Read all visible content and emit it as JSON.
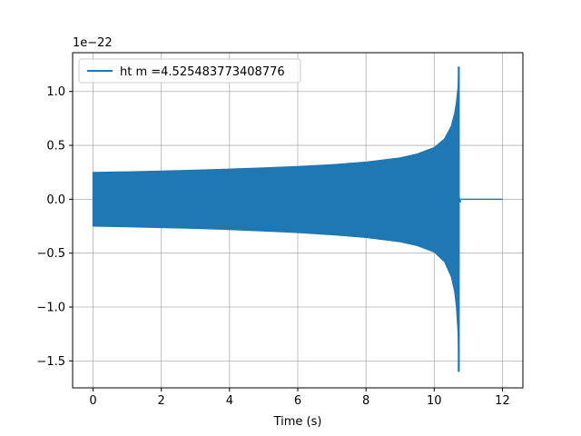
{
  "chart_data": {
    "type": "line",
    "title": "",
    "xlabel": "Time (s)",
    "ylabel": "",
    "y_offset_label": "1e−22",
    "xlim": [
      -0.6,
      12.6
    ],
    "ylim": [
      -1.75,
      1.36
    ],
    "x_ticks": [
      0,
      2,
      4,
      6,
      8,
      10,
      12
    ],
    "x_tick_labels": [
      "0",
      "2",
      "4",
      "6",
      "8",
      "10",
      "12"
    ],
    "y_ticks": [
      -1.5,
      -1.0,
      -0.5,
      0.0,
      0.5,
      1.0
    ],
    "y_tick_labels": [
      "−1.5",
      "−1.0",
      "−0.5",
      "0.0",
      "0.5",
      "1.0"
    ],
    "grid": true,
    "legend_position": "top-left",
    "series": [
      {
        "name": "ht m =4.525483773408776",
        "color": "#1f77b4",
        "envelope": {
          "x": [
            0,
            1,
            2,
            3,
            4,
            5,
            6,
            7,
            8,
            9,
            9.5,
            10,
            10.3,
            10.5,
            10.6,
            10.65,
            10.7,
            10.72
          ],
          "upper": [
            0.25,
            0.255,
            0.262,
            0.27,
            0.28,
            0.292,
            0.305,
            0.322,
            0.345,
            0.385,
            0.42,
            0.48,
            0.56,
            0.68,
            0.8,
            0.9,
            1.05,
            1.23
          ],
          "lower": [
            -0.25,
            -0.256,
            -0.263,
            -0.271,
            -0.282,
            -0.295,
            -0.31,
            -0.33,
            -0.355,
            -0.395,
            -0.43,
            -0.49,
            -0.58,
            -0.72,
            -0.86,
            -1.0,
            -1.25,
            -1.6
          ]
        },
        "ringdown_end": 10.78,
        "flat_until": 12.0
      }
    ]
  }
}
